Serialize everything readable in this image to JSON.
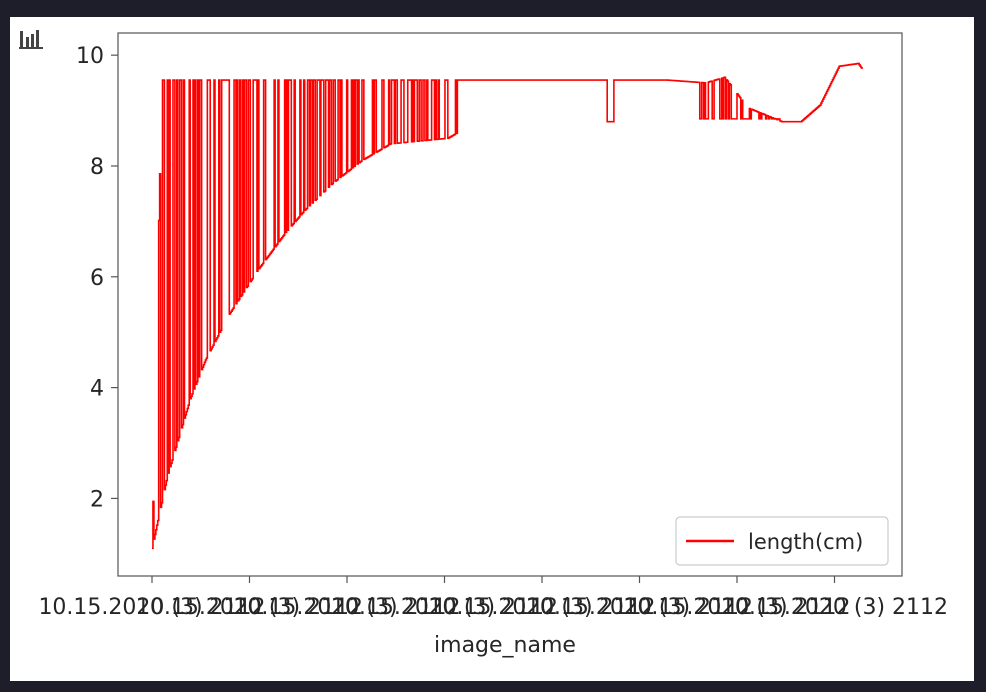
{
  "toolbar": {
    "icon": "bar-chart-icon"
  },
  "chart_data": {
    "type": "line",
    "title": "",
    "xlabel": "image_name",
    "ylabel": "",
    "ylim": [
      0.6,
      10.4
    ],
    "yticks": [
      2,
      4,
      6,
      8,
      10
    ],
    "xtick_labels": [
      "10.15.2020 (3) 2112",
      "10.15.2020 (3) 2112",
      "10.15.2020 (3) 2112",
      "10.15.2020 (3) 2112",
      "10.15.2020 (3) 2112",
      "10.15.2020 (3) 2112",
      "10.15.2020 (3) 2112",
      "10.15.2020 (3) 2112"
    ],
    "legend_position": "lower-right",
    "grid": false,
    "series": [
      {
        "name": "length(cm)",
        "color": "#ff0000",
        "envelope_x": [
          0,
          3,
          8,
          14,
          20,
          28,
          40,
          55,
          70,
          80,
          95,
          110,
          125,
          140,
          155,
          160,
          175,
          200
        ],
        "envelope_low": [
          1.1,
          1.6,
          2.4,
          3.1,
          3.8,
          4.5,
          5.3,
          6.1,
          6.8,
          7.2,
          7.7,
          8.1,
          8.4,
          8.45,
          8.5,
          8.6,
          8.8,
          8.8
        ],
        "plateau_x": [
          0,
          5,
          50,
          100,
          160,
          200,
          270,
          290,
          300,
          312,
          330,
          340,
          350,
          360,
          370,
          372
        ],
        "plateau_y": [
          1.1,
          9.55,
          9.55,
          9.55,
          9.55,
          9.55,
          9.55,
          9.5,
          9.6,
          9.05,
          8.8,
          8.8,
          9.1,
          9.8,
          9.85,
          9.75
        ]
      }
    ]
  }
}
